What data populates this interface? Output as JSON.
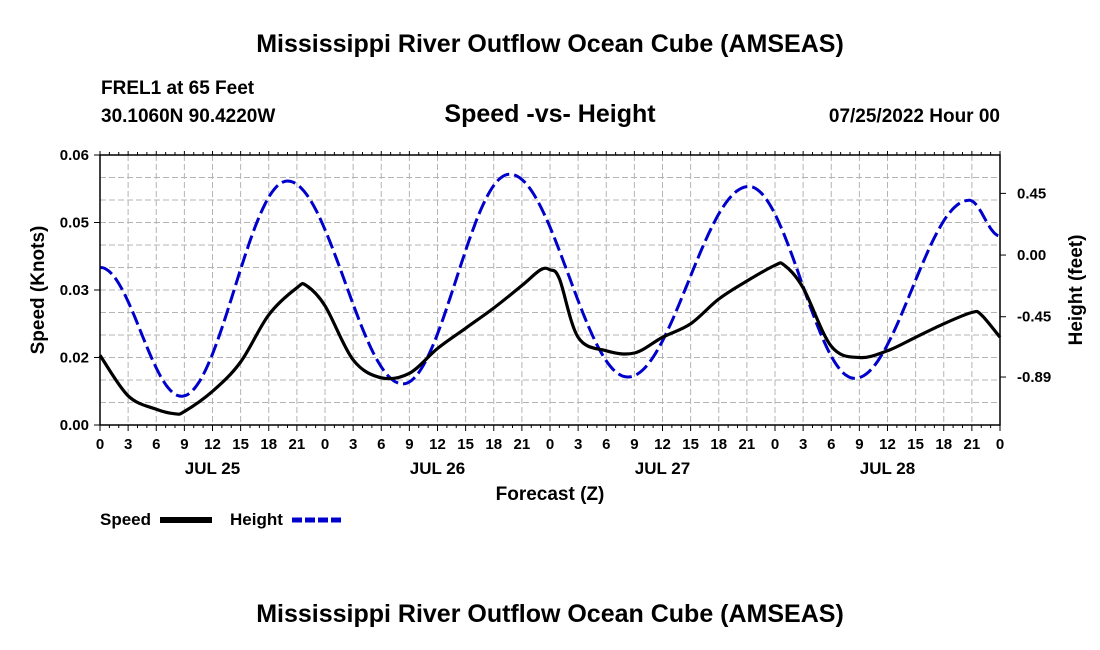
{
  "page_title": "Mississippi River Outflow Ocean Cube (AMSEAS)",
  "footer_title": "Mississippi River Outflow Ocean Cube (AMSEAS)",
  "station": {
    "name": "FREL1 at 65 Feet",
    "coords": "30.1060N  90.4220W",
    "issued": "07/25/2022 Hour 00"
  },
  "chart_data": {
    "type": "line",
    "title": "Speed -vs- Height",
    "xlabel": "Forecast (Z)",
    "ylabel_left": "Speed (Knots)",
    "ylabel_right": "Height (feet)",
    "xlim": [
      0,
      96
    ],
    "ylim_left": [
      0.0,
      0.06
    ],
    "ylim_right": [
      -1.24,
      0.73
    ],
    "grid": true,
    "left_ticks": [
      {
        "value": 0.0,
        "label": "0.00"
      },
      {
        "value": 0.015,
        "label": "0.02"
      },
      {
        "value": 0.03,
        "label": "0.03"
      },
      {
        "value": 0.045,
        "label": "0.05"
      },
      {
        "value": 0.06,
        "label": "0.06"
      }
    ],
    "right_ticks": [
      {
        "value": 0.45,
        "label": "0.45"
      },
      {
        "value": 0.0,
        "label": "0.00"
      },
      {
        "value": -0.45,
        "label": "-0.45"
      },
      {
        "value": -0.89,
        "label": "-0.89"
      }
    ],
    "x_tick_labels": [
      "0",
      "3",
      "6",
      "9",
      "12",
      "15",
      "18",
      "21",
      "0",
      "3",
      "6",
      "9",
      "12",
      "15",
      "18",
      "21",
      "0",
      "3",
      "6",
      "9",
      "12",
      "15",
      "18",
      "21",
      "0",
      "3",
      "6",
      "9",
      "12",
      "15",
      "18",
      "21",
      "0"
    ],
    "day_labels": [
      {
        "label": "JUL 25",
        "hour": 12
      },
      {
        "label": "JUL 26",
        "hour": 36
      },
      {
        "label": "JUL 27",
        "hour": 60
      },
      {
        "label": "JUL 28",
        "hour": 84
      }
    ],
    "series": [
      {
        "name": "Speed",
        "color": "#000000",
        "dash": "solid",
        "x": [
          0,
          3,
          6,
          8,
          9,
          12,
          15,
          18,
          21,
          22,
          24,
          27,
          30,
          33,
          36,
          39,
          42,
          45,
          47,
          48,
          49,
          51,
          54,
          57,
          60,
          63,
          66,
          69,
          72,
          73,
          75,
          78,
          81,
          84,
          87,
          90,
          93,
          94,
          96
        ],
        "y": [
          0.0155,
          0.0065,
          0.0035,
          0.0025,
          0.003,
          0.0075,
          0.014,
          0.0245,
          0.0305,
          0.031,
          0.0265,
          0.0145,
          0.0105,
          0.0115,
          0.017,
          0.0215,
          0.026,
          0.031,
          0.0345,
          0.0345,
          0.0325,
          0.0195,
          0.0165,
          0.016,
          0.0195,
          0.0225,
          0.028,
          0.032,
          0.0355,
          0.0355,
          0.0305,
          0.0175,
          0.015,
          0.0165,
          0.0195,
          0.0225,
          0.025,
          0.0245,
          0.0195
        ]
      },
      {
        "name": "Height",
        "color": "#0000cc",
        "dash": "dashed",
        "x": [
          0,
          8.7,
          20,
          32.3,
          43.7,
          56.3,
          69.2,
          80.5,
          92.7,
          96
        ],
        "y": [
          -0.09,
          -1.03,
          0.54,
          -0.94,
          0.59,
          -0.89,
          0.5,
          -0.9,
          0.4,
          0.14
        ]
      }
    ],
    "legend": {
      "position": "bottom-left",
      "entries": [
        "Speed",
        "Height"
      ]
    }
  }
}
